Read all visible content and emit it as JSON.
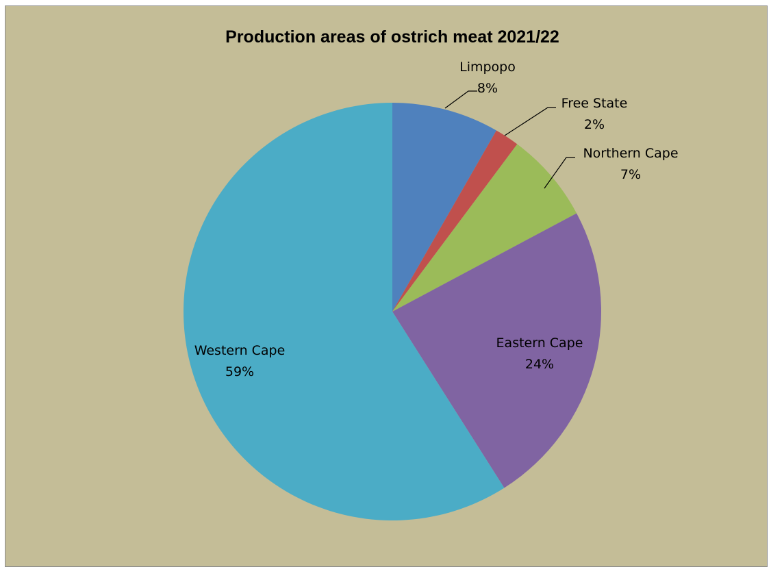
{
  "chart_data": {
    "type": "pie",
    "title": "Production areas of ostrich meat 2021/22",
    "slices": [
      {
        "label": "Limpopo",
        "percent_label": "8%",
        "value": 8.3,
        "color": "#4F81BD"
      },
      {
        "label": "Free State",
        "percent_label": "2%",
        "value": 1.9,
        "color": "#C0504D"
      },
      {
        "label": "Northern Cape",
        "percent_label": "7%",
        "value": 7.0,
        "color": "#9BBB59"
      },
      {
        "label": "Eastern Cape",
        "percent_label": "24%",
        "value": 23.8,
        "color": "#8064A2"
      },
      {
        "label": "Western Cape",
        "percent_label": "59%",
        "value": 59.0,
        "color": "#4BACC6"
      }
    ],
    "start_angle": "12 o'clock",
    "direction": "clockwise",
    "background_color": "#C4BD97"
  }
}
